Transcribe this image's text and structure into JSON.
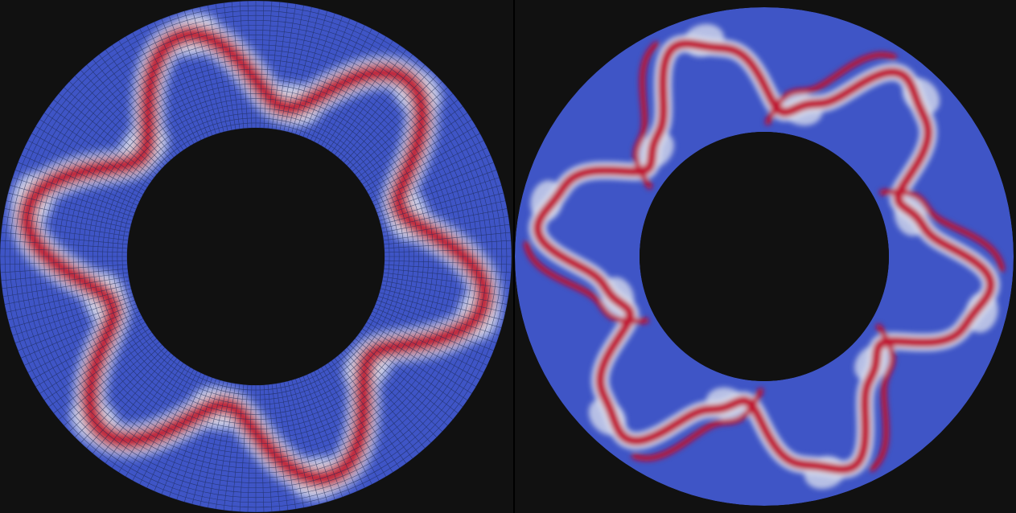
{
  "figure": {
    "panels": [
      {
        "id": "left",
        "description_free": true,
        "mesh": "visible-quadrilateral-grid"
      },
      {
        "id": "right",
        "description_free": true,
        "mesh": "hidden-smooth-field"
      }
    ],
    "colormap": {
      "low": "#3f55c6",
      "mid": "#dfe3ef",
      "high": "#c0102e"
    },
    "background": "#111111"
  }
}
